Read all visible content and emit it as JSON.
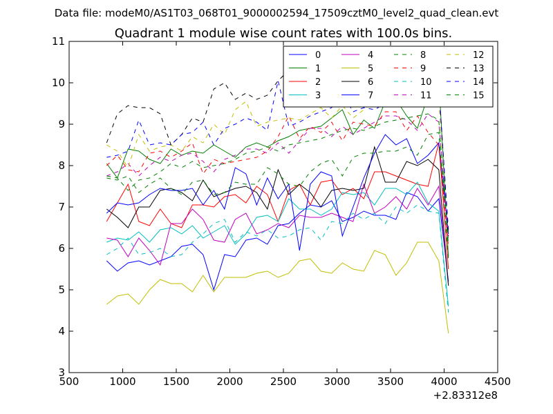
{
  "chart_data": {
    "type": "line",
    "suptitle": "Data file: modeM0/AS1T03_068T01_9000002594_17509cztM0_level2_quad_clean.evt",
    "title": "Quadrant 1 module wise count rates with 100.0s bins.",
    "xlabel": "",
    "ylabel": "",
    "xlim": [
      500,
      4500
    ],
    "ylim": [
      3,
      11
    ],
    "x_ticks": [
      "500",
      "1000",
      "1500",
      "2000",
      "2500",
      "3000",
      "3500",
      "4000",
      "4500"
    ],
    "y_ticks": [
      "3",
      "4",
      "5",
      "6",
      "7",
      "8",
      "9",
      "10",
      "11"
    ],
    "x_offset_label": "+2.83312e8",
    "grid": false,
    "legend_position": "top-right",
    "legend_columns": 4,
    "x": [
      850,
      950,
      1050,
      1150,
      1250,
      1350,
      1450,
      1550,
      1650,
      1750,
      1850,
      1950,
      2050,
      2150,
      2250,
      2350,
      2450,
      2550,
      2650,
      2750,
      2850,
      2950,
      3050,
      3150,
      3250,
      3350,
      3450,
      3550,
      3650,
      3750,
      3850,
      3950,
      4040
    ],
    "series": [
      {
        "name": "0",
        "color": "#0000ff",
        "style": "solid",
        "values": [
          5.7,
          5.45,
          5.65,
          5.7,
          5.6,
          5.7,
          5.8,
          6.05,
          6.1,
          5.85,
          5.0,
          5.85,
          5.8,
          6.2,
          6.25,
          6.1,
          6.55,
          6.6,
          6.85,
          7.05,
          7.0,
          7.15,
          6.65,
          6.75,
          6.9,
          6.8,
          6.8,
          6.7,
          7.35,
          7.25,
          6.9,
          7.2,
          5.2
        ]
      },
      {
        "name": "1",
        "color": "#008000",
        "style": "solid",
        "values": [
          8.05,
          7.7,
          8.4,
          8.35,
          8.15,
          8.05,
          8.4,
          8.25,
          8.35,
          8.3,
          8.5,
          8.35,
          8.2,
          8.45,
          8.55,
          8.45,
          8.6,
          8.7,
          8.85,
          8.9,
          8.95,
          9.15,
          9.35,
          8.75,
          9.1,
          8.9,
          9.55,
          9.6,
          9.2,
          8.9,
          9.7,
          10.1,
          5.8
        ]
      },
      {
        "name": "2",
        "color": "#ff0000",
        "style": "solid",
        "values": [
          6.65,
          7.1,
          7.55,
          6.65,
          6.55,
          6.95,
          6.6,
          6.5,
          7.05,
          7.05,
          7.0,
          7.25,
          7.3,
          7.1,
          7.5,
          7.3,
          6.65,
          7.4,
          7.55,
          7.05,
          7.6,
          7.65,
          7.3,
          7.45,
          7.2,
          7.85,
          7.85,
          7.75,
          7.65,
          7.55,
          7.5,
          8.55,
          5.5
        ]
      },
      {
        "name": "3",
        "color": "#00bfbf",
        "style": "solid",
        "values": [
          6.15,
          6.25,
          6.2,
          6.4,
          6.15,
          6.45,
          6.5,
          6.35,
          6.55,
          6.25,
          6.4,
          6.55,
          6.1,
          6.35,
          6.75,
          6.8,
          6.65,
          7.2,
          6.95,
          6.95,
          6.8,
          6.95,
          7.35,
          7.3,
          7.35,
          7.05,
          7.45,
          7.45,
          7.3,
          7.6,
          7.1,
          6.9,
          4.6
        ]
      },
      {
        "name": "4",
        "color": "#bf00bf",
        "style": "solid",
        "values": [
          6.25,
          6.2,
          5.8,
          6.25,
          5.95,
          5.6,
          6.6,
          6.6,
          6.95,
          6.7,
          6.2,
          6.15,
          6.7,
          6.85,
          6.35,
          6.45,
          6.6,
          6.5,
          6.8,
          6.75,
          6.75,
          6.85,
          6.75,
          6.65,
          7.55,
          6.85,
          7.0,
          7.25,
          6.95,
          7.45,
          7.05,
          7.5,
          5.1
        ]
      },
      {
        "name": "5",
        "color": "#bfbf00",
        "style": "solid",
        "values": [
          4.65,
          4.85,
          4.9,
          4.65,
          5.0,
          5.25,
          5.15,
          5.15,
          4.95,
          5.35,
          4.95,
          5.3,
          5.3,
          5.3,
          5.4,
          5.45,
          5.3,
          5.4,
          5.7,
          5.75,
          5.45,
          5.4,
          5.65,
          5.5,
          5.45,
          5.95,
          5.85,
          5.35,
          5.65,
          6.15,
          6.15,
          5.7,
          3.95
        ]
      },
      {
        "name": "6",
        "color": "#000000",
        "style": "solid",
        "values": [
          6.95,
          6.75,
          6.5,
          7.0,
          7.0,
          7.4,
          7.45,
          7.35,
          7.15,
          7.65,
          7.25,
          7.35,
          7.45,
          7.5,
          7.35,
          6.95,
          7.9,
          7.3,
          7.55,
          7.35,
          7.0,
          7.4,
          7.45,
          7.4,
          7.45,
          8.45,
          7.6,
          7.6,
          8.1,
          8.0,
          8.15,
          7.9,
          5.1
        ]
      },
      {
        "name": "7",
        "color": "#0000ff",
        "style": "solid",
        "values": [
          6.85,
          7.1,
          7.05,
          7.1,
          7.3,
          7.45,
          7.4,
          7.4,
          7.45,
          7.05,
          7.4,
          6.95,
          7.95,
          7.8,
          7.05,
          7.7,
          7.2,
          7.55,
          5.95,
          7.55,
          7.85,
          7.75,
          6.3,
          7.0,
          7.7,
          8.3,
          8.75,
          8.5,
          8.65,
          8.05,
          8.25,
          8.55,
          6.35
        ]
      },
      {
        "name": "8",
        "color": "#008000",
        "style": "dashed",
        "values": [
          7.7,
          7.65,
          7.75,
          7.35,
          7.55,
          7.7,
          7.45,
          7.3,
          7.6,
          7.65,
          7.3,
          7.35,
          7.6,
          7.55,
          7.55,
          7.95,
          7.8,
          7.55,
          7.5,
          7.85,
          8.05,
          8.15,
          7.75,
          8.2,
          8.3,
          8.3,
          8.35,
          8.35,
          8.45,
          8.25,
          8.75,
          8.8,
          5.75
        ]
      },
      {
        "name": "9",
        "color": "#ff0000",
        "style": "dashed",
        "values": [
          8.0,
          8.25,
          7.9,
          7.85,
          8.3,
          8.35,
          8.2,
          8.35,
          8.55,
          7.8,
          8.15,
          8.05,
          8.1,
          8.15,
          8.2,
          8.35,
          8.7,
          9.2,
          8.65,
          8.95,
          8.8,
          9.05,
          8.6,
          9.05,
          9.0,
          8.95,
          9.3,
          9.3,
          8.85,
          9.2,
          8.8,
          8.5,
          6.05
        ]
      },
      {
        "name": "10",
        "color": "#00bfbf",
        "style": "dashed",
        "values": [
          5.85,
          6.0,
          6.25,
          5.85,
          5.9,
          6.0,
          5.8,
          5.85,
          6.15,
          6.35,
          6.6,
          6.7,
          6.15,
          6.4,
          6.3,
          6.45,
          6.25,
          6.3,
          6.45,
          6.5,
          6.2,
          6.65,
          6.6,
          6.85,
          6.7,
          6.85,
          6.6,
          7.0,
          6.85,
          7.05,
          6.9,
          6.85,
          4.45
        ]
      },
      {
        "name": "11",
        "color": "#bf00bf",
        "style": "dashed",
        "values": [
          7.75,
          7.85,
          8.05,
          7.75,
          8.0,
          8.2,
          8.1,
          8.25,
          8.3,
          8.1,
          7.85,
          8.15,
          8.25,
          8.4,
          8.4,
          8.3,
          8.55,
          8.3,
          8.6,
          8.9,
          8.9,
          8.7,
          8.95,
          8.75,
          8.9,
          9.05,
          9.2,
          9.2,
          9.1,
          8.85,
          9.25,
          9.05,
          6.2
        ]
      },
      {
        "name": "12",
        "color": "#bfbf00",
        "style": "dashed",
        "values": [
          8.5,
          8.35,
          7.95,
          8.75,
          8.35,
          8.45,
          8.5,
          8.35,
          8.7,
          8.55,
          9.0,
          8.75,
          9.35,
          9.55,
          8.95,
          9.05,
          9.1,
          9.15,
          9.1,
          9.25,
          9.4,
          9.15,
          9.45,
          9.15,
          9.35,
          9.6,
          9.55,
          9.75,
          10.0,
          9.6,
          10.05,
          9.55,
          6.4
        ]
      },
      {
        "name": "13",
        "color": "#000000",
        "style": "dashed",
        "values": [
          8.55,
          9.25,
          9.45,
          9.4,
          9.4,
          9.25,
          8.5,
          8.75,
          9.15,
          9.05,
          9.85,
          10.0,
          9.6,
          9.75,
          9.6,
          9.7,
          10.05,
          10.3,
          9.9,
          9.75,
          9.85,
          10.15,
          10.05,
          10.1,
          10.2,
          10.15,
          10.35,
          10.4,
          10.55,
          10.45,
          10.4,
          9.95,
          6.3
        ]
      },
      {
        "name": "14",
        "color": "#0000ff",
        "style": "dashed",
        "values": [
          8.2,
          8.25,
          8.35,
          9.1,
          8.5,
          8.55,
          8.5,
          8.75,
          8.8,
          9.05,
          8.5,
          8.9,
          9.0,
          9.15,
          9.05,
          8.85,
          10.05,
          8.95,
          9.05,
          9.2,
          9.3,
          9.4,
          9.75,
          9.3,
          9.4,
          9.35,
          9.5,
          9.6,
          9.75,
          9.85,
          9.7,
          9.85,
          6.45
        ]
      },
      {
        "name": "15",
        "color": "#008000",
        "style": "dashed",
        "values": [
          7.75,
          7.7,
          7.4,
          7.65,
          7.7,
          7.85,
          8.05,
          7.95,
          8.1,
          7.95,
          8.0,
          8.05,
          8.15,
          8.3,
          8.35,
          8.45,
          8.35,
          8.5,
          8.55,
          8.6,
          8.65,
          8.75,
          8.85,
          8.9,
          8.85,
          8.95,
          9.05,
          9.1,
          9.15,
          9.2,
          9.25,
          9.1,
          6.1
        ]
      }
    ]
  }
}
